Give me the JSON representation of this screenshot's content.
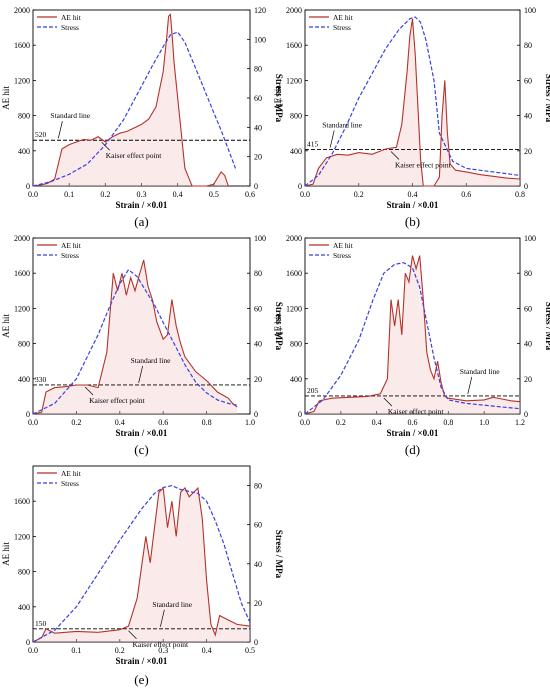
{
  "chart_data": [
    {
      "type": "line",
      "panel_label": "(a)",
      "xlabel": "Strain / ×0.01",
      "ylabel_left": "AE hit",
      "ylabel_right": "Stress / MPa",
      "xlim": [
        0,
        0.6
      ],
      "ylim_left": [
        0,
        2000
      ],
      "ylim_right": [
        0,
        120
      ],
      "x_ticks": [
        "0.0",
        "0.1",
        "0.2",
        "0.3",
        "0.4",
        "0.5",
        "0.6"
      ],
      "y_left_ticks": [
        "0",
        "400",
        "800",
        "1200",
        "1600",
        "2000"
      ],
      "y_right_ticks": [
        "0",
        "20",
        "40",
        "60",
        "80",
        "100",
        "120"
      ],
      "legend": [
        "AE hit",
        "Stress"
      ],
      "series": [
        {
          "name": "AE hit",
          "axis": "left",
          "x": [
            0,
            0.02,
            0.04,
            0.06,
            0.07,
            0.08,
            0.1,
            0.12,
            0.14,
            0.16,
            0.18,
            0.2,
            0.22,
            0.24,
            0.26,
            0.28,
            0.3,
            0.32,
            0.34,
            0.35,
            0.36,
            0.37,
            0.375,
            0.38,
            0.385,
            0.39,
            0.4,
            0.41,
            0.42,
            0.44,
            0.46,
            0.48,
            0.5,
            0.52,
            0.53,
            0.54
          ],
          "y": [
            0,
            10,
            30,
            80,
            250,
            420,
            470,
            500,
            530,
            520,
            560,
            500,
            560,
            600,
            620,
            660,
            700,
            760,
            900,
            1100,
            1300,
            1700,
            1930,
            1950,
            1700,
            1400,
            1000,
            600,
            200,
            0,
            0,
            0,
            20,
            160,
            120,
            0
          ]
        },
        {
          "name": "Stress",
          "axis": "right",
          "x": [
            0,
            0.05,
            0.1,
            0.15,
            0.2,
            0.25,
            0.3,
            0.33,
            0.36,
            0.38,
            0.4,
            0.42,
            0.45,
            0.48,
            0.5,
            0.52,
            0.54,
            0.56
          ],
          "y": [
            0,
            3,
            8,
            15,
            28,
            45,
            68,
            82,
            95,
            103,
            105,
            98,
            80,
            62,
            50,
            38,
            25,
            12
          ]
        }
      ],
      "standard_line": {
        "value": 520,
        "value_label": "520",
        "label": "Standard line"
      },
      "annotations": [
        {
          "text": "Kaiser effect point",
          "x": 0.19,
          "y": 520
        }
      ]
    },
    {
      "type": "line",
      "panel_label": "(b)",
      "xlabel": "Strain / ×0.01",
      "ylabel_left": "AE hit",
      "ylabel_right": "Stress / MPa",
      "xlim": [
        0,
        0.8
      ],
      "ylim_left": [
        0,
        2000
      ],
      "ylim_right": [
        0,
        100
      ],
      "x_ticks": [
        "0.0",
        "0.2",
        "0.4",
        "0.6",
        "0.8"
      ],
      "y_left_ticks": [
        "0",
        "400",
        "800",
        "1200",
        "1600",
        "2000"
      ],
      "y_right_ticks": [
        "0",
        "20",
        "40",
        "60",
        "80",
        "100"
      ],
      "legend": [
        "AE hit",
        "Stress"
      ],
      "series": [
        {
          "name": "AE hit",
          "axis": "left",
          "x": [
            0,
            0.03,
            0.05,
            0.08,
            0.12,
            0.16,
            0.2,
            0.25,
            0.3,
            0.34,
            0.36,
            0.38,
            0.39,
            0.4,
            0.41,
            0.42,
            0.43,
            0.44,
            0.46,
            0.48,
            0.5,
            0.51,
            0.52,
            0.53,
            0.54,
            0.56,
            0.6,
            0.65,
            0.7,
            0.75,
            0.8
          ],
          "y": [
            0,
            20,
            200,
            320,
            360,
            350,
            380,
            360,
            420,
            440,
            700,
            1300,
            1700,
            1900,
            1500,
            900,
            300,
            0,
            0,
            0,
            100,
            800,
            1200,
            600,
            250,
            180,
            160,
            130,
            110,
            90,
            80
          ]
        },
        {
          "name": "Stress",
          "axis": "right",
          "x": [
            0,
            0.05,
            0.1,
            0.15,
            0.2,
            0.25,
            0.3,
            0.35,
            0.39,
            0.41,
            0.43,
            0.45,
            0.48,
            0.5,
            0.55,
            0.6,
            0.65,
            0.7,
            0.75,
            0.8
          ],
          "y": [
            0,
            6,
            18,
            33,
            50,
            64,
            78,
            89,
            95,
            96,
            93,
            83,
            60,
            30,
            14,
            10,
            9,
            8,
            7,
            6
          ]
        }
      ],
      "standard_line": {
        "value": 415,
        "value_label": "415",
        "label": "Standard line"
      },
      "annotations": [
        {
          "text": "Kaiser effect point",
          "x": 0.32,
          "y": 415
        }
      ]
    },
    {
      "type": "line",
      "panel_label": "(c)",
      "xlabel": "Strain / ×0.01",
      "ylabel_left": "AE hit",
      "ylabel_right": "Stress / MPa",
      "xlim": [
        0,
        1.0
      ],
      "ylim_left": [
        0,
        2000
      ],
      "ylim_right": [
        0,
        100
      ],
      "x_ticks": [
        "0.0",
        "0.2",
        "0.4",
        "0.6",
        "0.8",
        "1.0"
      ],
      "y_left_ticks": [
        "0",
        "400",
        "800",
        "1200",
        "1600",
        "2000"
      ],
      "y_right_ticks": [
        "0",
        "20",
        "40",
        "60",
        "80",
        "100"
      ],
      "legend": [
        "AE hit",
        "Stress"
      ],
      "series": [
        {
          "name": "AE hit",
          "axis": "left",
          "x": [
            0,
            0.04,
            0.06,
            0.1,
            0.15,
            0.2,
            0.25,
            0.3,
            0.34,
            0.37,
            0.39,
            0.41,
            0.43,
            0.45,
            0.47,
            0.49,
            0.51,
            0.53,
            0.55,
            0.57,
            0.6,
            0.62,
            0.64,
            0.66,
            0.68,
            0.7,
            0.75,
            0.8,
            0.85,
            0.9,
            0.92,
            0.94
          ],
          "y": [
            0,
            20,
            250,
            300,
            310,
            330,
            330,
            300,
            700,
            1600,
            1400,
            1600,
            1350,
            1550,
            1400,
            1580,
            1750,
            1450,
            1300,
            1050,
            850,
            900,
            1300,
            1000,
            800,
            650,
            480,
            380,
            250,
            180,
            120,
            80
          ]
        },
        {
          "name": "Stress",
          "axis": "right",
          "x": [
            0,
            0.1,
            0.2,
            0.3,
            0.35,
            0.4,
            0.44,
            0.48,
            0.52,
            0.56,
            0.6,
            0.65,
            0.7,
            0.75,
            0.8,
            0.85,
            0.9,
            0.94
          ],
          "y": [
            0,
            6,
            20,
            45,
            60,
            74,
            82,
            78,
            70,
            62,
            52,
            40,
            28,
            18,
            12,
            8,
            6,
            5
          ]
        }
      ],
      "standard_line": {
        "value": 330,
        "value_label": "330",
        "label": "Standard line"
      },
      "annotations": [
        {
          "text": "Kaiser effect point",
          "x": 0.24,
          "y": 330
        }
      ]
    },
    {
      "type": "line",
      "panel_label": "(d)",
      "xlabel": "Strain / ×0.01",
      "ylabel_left": "AE hit",
      "ylabel_right": "Stress / MPa",
      "xlim": [
        0,
        1.2
      ],
      "ylim_left": [
        0,
        2000
      ],
      "ylim_right": [
        0,
        100
      ],
      "x_ticks": [
        "0.0",
        "0.2",
        "0.4",
        "0.6",
        "0.8",
        "1.0",
        "1.2"
      ],
      "y_left_ticks": [
        "0",
        "400",
        "800",
        "1200",
        "1600",
        "2000"
      ],
      "y_right_ticks": [
        "0",
        "20",
        "40",
        "60",
        "80",
        "100"
      ],
      "legend": [
        "AE hit",
        "Stress"
      ],
      "series": [
        {
          "name": "AE hit",
          "axis": "left",
          "x": [
            0,
            0.05,
            0.08,
            0.15,
            0.25,
            0.35,
            0.42,
            0.46,
            0.48,
            0.5,
            0.52,
            0.54,
            0.56,
            0.58,
            0.6,
            0.62,
            0.64,
            0.66,
            0.68,
            0.7,
            0.72,
            0.74,
            0.76,
            0.78,
            0.8,
            0.9,
            1.0,
            1.05,
            1.1,
            1.15,
            1.2
          ],
          "y": [
            0,
            30,
            150,
            180,
            190,
            200,
            230,
            400,
            1300,
            1000,
            1300,
            900,
            1600,
            1500,
            1800,
            1650,
            1800,
            1300,
            700,
            500,
            400,
            600,
            350,
            200,
            180,
            150,
            160,
            190,
            170,
            150,
            140
          ]
        },
        {
          "name": "Stress",
          "axis": "right",
          "x": [
            0,
            0.1,
            0.2,
            0.3,
            0.38,
            0.44,
            0.5,
            0.55,
            0.6,
            0.64,
            0.68,
            0.72,
            0.76,
            0.8,
            0.9,
            1.0,
            1.1,
            1.2
          ],
          "y": [
            0,
            8,
            22,
            42,
            65,
            80,
            85,
            86,
            83,
            72,
            52,
            32,
            15,
            8,
            6,
            5,
            4,
            3
          ]
        }
      ],
      "standard_line": {
        "value": 205,
        "value_label": "205",
        "label": "Standard line"
      },
      "annotations": [
        {
          "text": "Kaiser effect point",
          "x": 0.44,
          "y": 205
        }
      ]
    },
    {
      "type": "line",
      "panel_label": "(e)",
      "xlabel": "Strain / ×0.01",
      "ylabel_left": "AE hit",
      "ylabel_right": "Stress / MPa",
      "xlim": [
        0,
        0.5
      ],
      "ylim_left": [
        0,
        2000
      ],
      "ylim_right": [
        0,
        90
      ],
      "x_ticks": [
        "0.0",
        "0.1",
        "0.2",
        "0.3",
        "0.4",
        "0.5"
      ],
      "y_left_ticks": [
        "0",
        "400",
        "800",
        "1200",
        "1600"
      ],
      "y_right_ticks": [
        "0",
        "20",
        "40",
        "60",
        "80"
      ],
      "legend": [
        "AE hit",
        "Stress"
      ],
      "series": [
        {
          "name": "AE hit",
          "axis": "left",
          "x": [
            0,
            0.02,
            0.03,
            0.05,
            0.1,
            0.15,
            0.2,
            0.22,
            0.24,
            0.26,
            0.27,
            0.28,
            0.29,
            0.3,
            0.31,
            0.32,
            0.33,
            0.34,
            0.35,
            0.36,
            0.37,
            0.38,
            0.39,
            0.4,
            0.41,
            0.42,
            0.43,
            0.45,
            0.47,
            0.5
          ],
          "y": [
            0,
            50,
            150,
            100,
            120,
            110,
            140,
            180,
            500,
            1200,
            900,
            1300,
            1700,
            1750,
            1300,
            1600,
            1200,
            1700,
            1750,
            1650,
            1700,
            1750,
            1400,
            700,
            200,
            80,
            300,
            250,
            200,
            180
          ]
        },
        {
          "name": "Stress",
          "axis": "right",
          "x": [
            0,
            0.05,
            0.1,
            0.15,
            0.2,
            0.25,
            0.28,
            0.3,
            0.32,
            0.34,
            0.36,
            0.38,
            0.4,
            0.42,
            0.44,
            0.46,
            0.48,
            0.5
          ],
          "y": [
            0,
            6,
            18,
            35,
            52,
            68,
            76,
            79,
            80,
            78,
            77,
            76,
            72,
            62,
            50,
            35,
            20,
            10
          ]
        }
      ],
      "standard_line": {
        "value": 150,
        "value_label": "150",
        "label": "Standard line"
      },
      "annotations": [
        {
          "text": "Kaiser effect point",
          "x": 0.22,
          "y": 150
        }
      ]
    }
  ]
}
